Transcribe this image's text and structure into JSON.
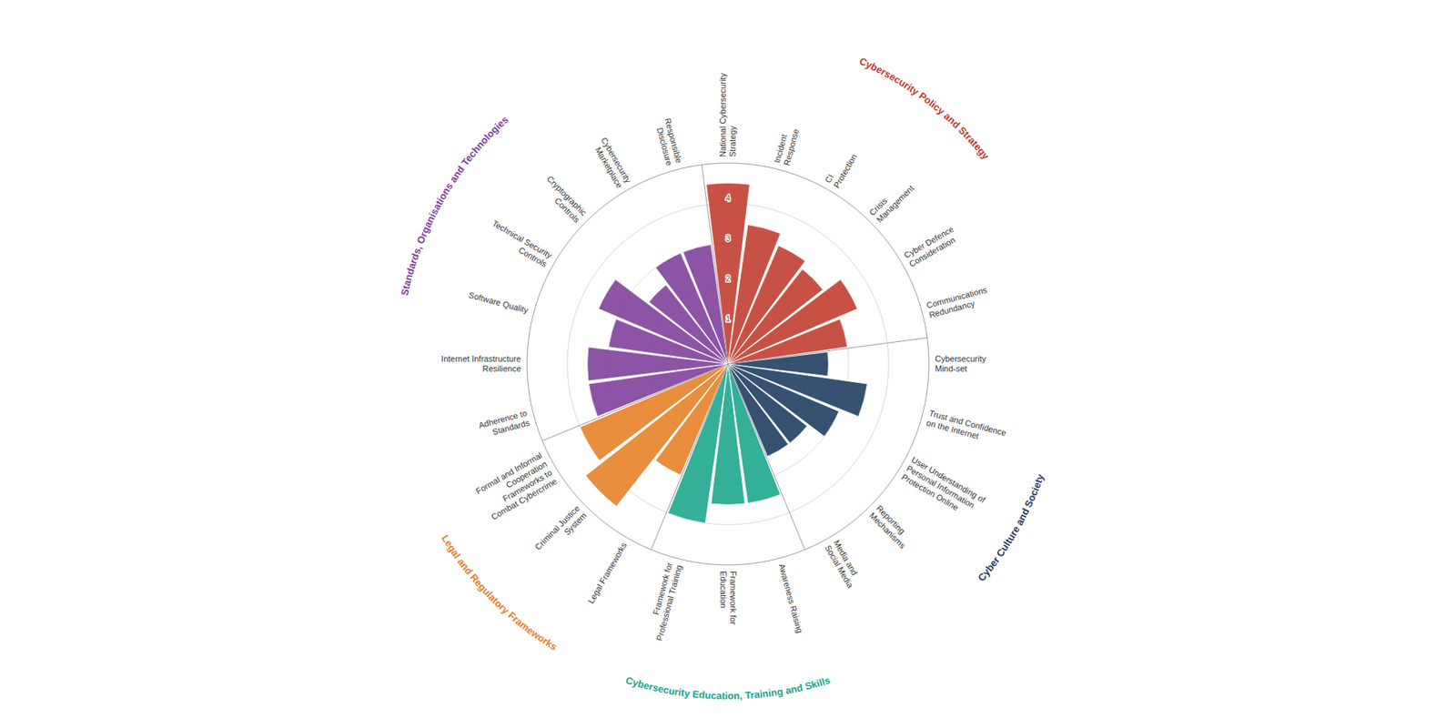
{
  "chart_data": {
    "type": "polar",
    "categories": [
      "National Cybersecurity\nStrategy",
      "Incident\nResponse",
      "CI\nProtection",
      "Crisis\nManagement",
      "Cyber Defence\nConsideration",
      "Communications\nRedundancy",
      "Cybersecurity\nMind-set",
      "Trust and Confidence\non the Internet",
      "User Understanding of\nPersonal Information\nProtection Online",
      "Reporting\nMechanisms",
      "Media and\nSocial Media",
      "Awareness Raising",
      "Framework for\nEducation",
      "Framework for\nProfessional Training",
      "Legal Frameworks",
      "Criminal Justice\nSystem",
      "Formal and Informal\nCooperation\nFrameworks to\nCombat Cybercrime",
      "Adherence to\nStandards",
      "Internet Infrastructure\nResilience",
      "Software Quality",
      "Technical Security\nControls",
      "Cryptographic\nControls",
      "Cybersecurity\nMarketplace",
      "Responsible\nDisclosure"
    ],
    "series": [
      {
        "name": "Cybersecurity Policy and Strategy",
        "color": "#c0392b",
        "values": [
          4.5,
          3.5,
          3.2,
          3.0,
          3.5,
          3.0,
          null,
          null,
          null,
          null,
          null,
          null,
          null,
          null,
          null,
          null,
          null,
          null,
          null,
          null,
          null,
          null,
          null,
          null
        ]
      },
      {
        "name": "Cyber Culture and Society",
        "color": "#1a3a5c",
        "values": [
          null,
          null,
          null,
          null,
          null,
          null,
          2.5,
          3.5,
          3.0,
          2.5,
          2.5,
          null,
          null,
          null,
          null,
          null,
          null,
          null,
          null,
          null,
          null,
          null,
          null,
          null
        ]
      },
      {
        "name": "Cybersecurity Education, Training and Skills",
        "color": "#17a589",
        "values": [
          null,
          null,
          null,
          null,
          null,
          null,
          null,
          null,
          null,
          null,
          null,
          3.5,
          3.5,
          4.0,
          null,
          null,
          null,
          null,
          null,
          null,
          null,
          null,
          null,
          null
        ]
      },
      {
        "name": "Legal and Regulatory Frameworks",
        "color": "#e67e22",
        "values": [
          null,
          null,
          null,
          null,
          null,
          null,
          null,
          null,
          null,
          null,
          null,
          null,
          null,
          null,
          3.0,
          4.5,
          4.0,
          null,
          null,
          null,
          null,
          null,
          null,
          null
        ]
      },
      {
        "name": "Standards, Organisations and Technologies",
        "color": "#7d3c98",
        "values": [
          null,
          null,
          null,
          null,
          null,
          null,
          null,
          null,
          null,
          null,
          null,
          null,
          null,
          null,
          null,
          null,
          null,
          3.5,
          3.5,
          3.0,
          3.5,
          2.5,
          3.0,
          3.0
        ]
      }
    ],
    "ylim": [
      0,
      5
    ],
    "yticks": [
      1,
      2,
      3,
      4
    ],
    "grid": true
  }
}
